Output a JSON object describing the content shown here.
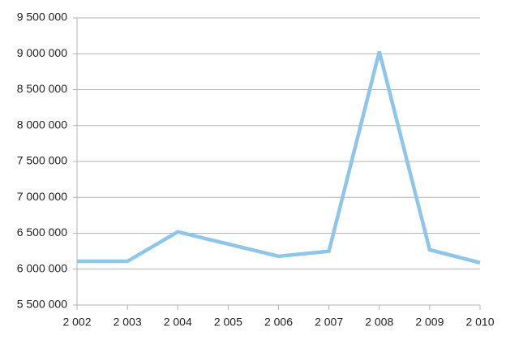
{
  "chart_data": {
    "type": "line",
    "x": [
      2002,
      2003,
      2004,
      2005,
      2006,
      2007,
      2008,
      2009,
      2010
    ],
    "series": [
      {
        "color": "#8cc6ea",
        "values": [
          6110000,
          6110000,
          6520000,
          6350000,
          6180000,
          6250000,
          9030000,
          6270000,
          6090000
        ]
      }
    ],
    "xlim": [
      2002,
      2010
    ],
    "xticks": [
      {
        "value": 2002,
        "label": "2 002"
      },
      {
        "value": 2003,
        "label": "2 003"
      },
      {
        "value": 2004,
        "label": "2 004"
      },
      {
        "value": 2005,
        "label": "2 005"
      },
      {
        "value": 2006,
        "label": "2 006"
      },
      {
        "value": 2007,
        "label": "2 007"
      },
      {
        "value": 2008,
        "label": "2 008"
      },
      {
        "value": 2009,
        "label": "2 009"
      },
      {
        "value": 2010,
        "label": "2 010"
      }
    ],
    "ylim": [
      5500000,
      9500000
    ],
    "yticks": [
      {
        "value": 5500000,
        "label": "5 500 000"
      },
      {
        "value": 6000000,
        "label": "6 000 000"
      },
      {
        "value": 6500000,
        "label": "6 500 000"
      },
      {
        "value": 7000000,
        "label": "7 000 000"
      },
      {
        "value": 7500000,
        "label": "7 500 000"
      },
      {
        "value": 8000000,
        "label": "8 000 000"
      },
      {
        "value": 8500000,
        "label": "8 500 000"
      },
      {
        "value": 9000000,
        "label": "9 000 000"
      },
      {
        "value": 9500000,
        "label": "9 500 000"
      }
    ],
    "grid": true
  }
}
